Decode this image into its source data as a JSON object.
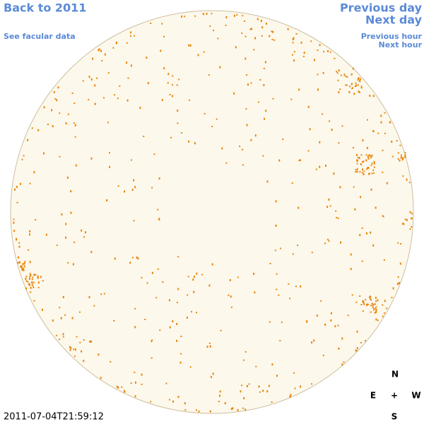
{
  "navigation": {
    "back_link": "Back to 2011",
    "facular_link": "See facular data",
    "previous_day": "Previous day",
    "next_day": "Next day",
    "previous_hour": "Previous hour",
    "next_hour": "Next hour"
  },
  "timestamp": "2011-07-04T21:59:12",
  "compass": {
    "north": "N",
    "east": "E",
    "center": "+",
    "west": "W",
    "south": "S"
  }
}
